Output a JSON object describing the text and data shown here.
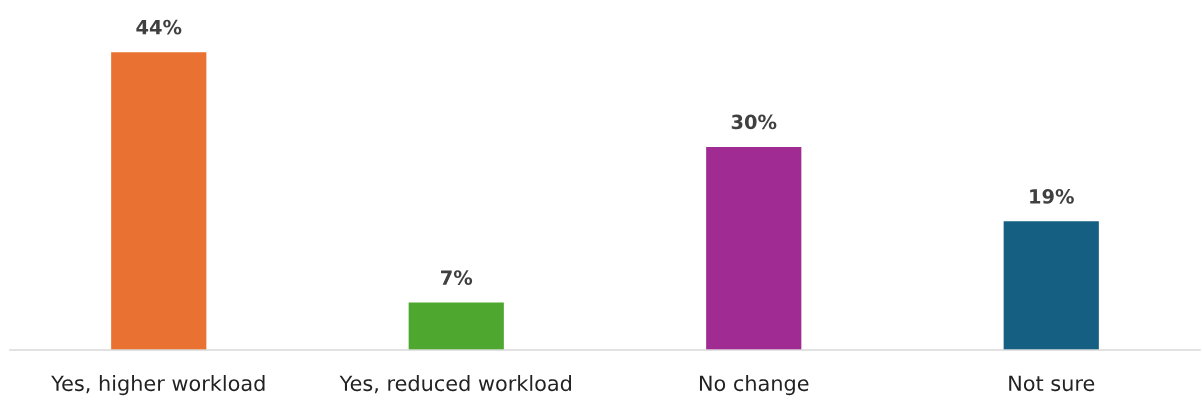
{
  "chart_data": {
    "type": "bar",
    "categories": [
      "Yes, higher workload",
      "Yes, reduced workload",
      "No change",
      "Not sure"
    ],
    "values": [
      44,
      7,
      30,
      19
    ],
    "colors": [
      "#e97132",
      "#4ea72e",
      "#a02b93",
      "#156082"
    ],
    "value_labels": [
      "44%",
      "7%",
      "30%",
      "19%"
    ],
    "grid": false,
    "legend": false
  }
}
